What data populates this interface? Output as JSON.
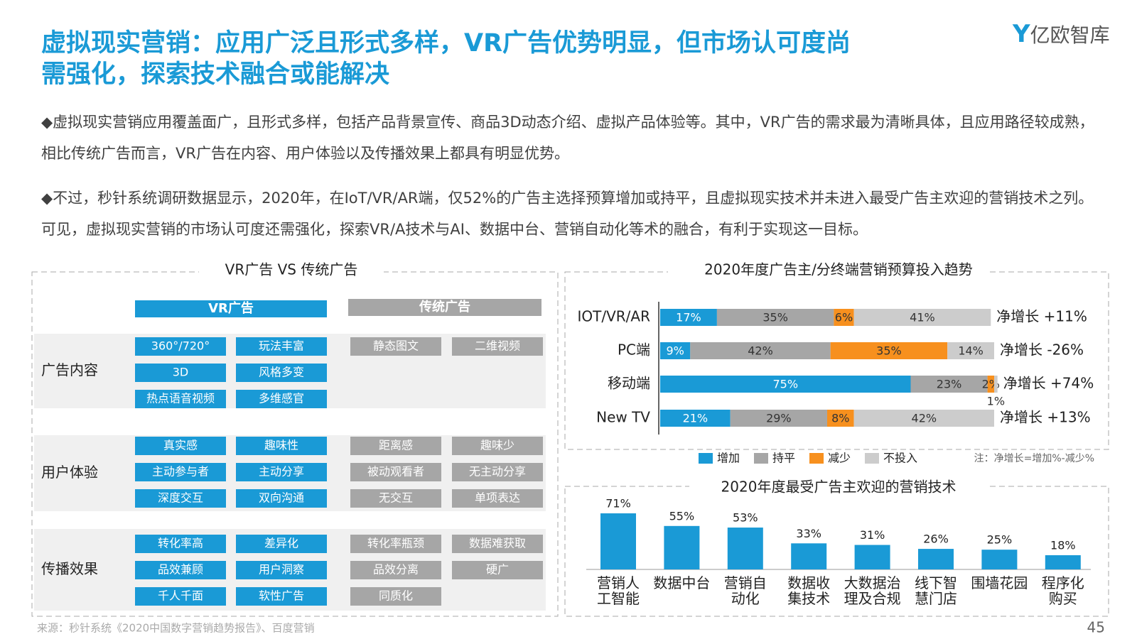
{
  "header": {
    "title_lines": [
      "虚拟现实营销：应用广泛且形式多样，VR广告优势明显，但市场认可度尚",
      "需强化，探索技术融合或能解决"
    ],
    "logo": "亿欧智库"
  },
  "paragraphs": [
    "◆虚拟现实营销应用覆盖面广，且形式多样，包括产品背景宣传、商品3D动态介绍、虚拟产品体验等。其中，VR广告的需求最为清晰具体，且应用路径较成熟，相比传统广告而言，VR广告在内容、用户体验以及传播效果上都具有明显优势。",
    "◆不过，秒针系统调研数据显示，2020年，在IoT/VR/AR端，仅52%的广告主选择预算增加或持平，且虚拟现实技术并未进入最受广告主欢迎的营销技术之列。可见，虚拟现实营销的市场认可度还需强化，探索VR/A技术与AI、数据中台、营销自动化等术的融合，有利于实现这一目标。"
  ],
  "comparison": {
    "title": "VR广告 VS 传统广告",
    "columns": [
      "VR广告",
      "传统广告"
    ],
    "rows": [
      {
        "label": "广告内容",
        "vr": [
          "360°/720°",
          "玩法丰富",
          "3D",
          "风格多变",
          "热点语音视频",
          "多维感官"
        ],
        "trad": [
          "静态图文",
          "二维视频"
        ]
      },
      {
        "label": "用户体验",
        "vr": [
          "真实感",
          "趣味性",
          "主动参与者",
          "主动分享",
          "深度交互",
          "双向沟通"
        ],
        "trad": [
          "距离感",
          "趣味少",
          "被动观看者",
          "无主动分享",
          "无交互",
          "单项表达"
        ]
      },
      {
        "label": "传播效果",
        "vr": [
          "转化率高",
          "差异化",
          "品效兼顾",
          "用户洞察",
          "千人千面",
          "软性广告"
        ],
        "trad": [
          "转化率瓶颈",
          "数据难获取",
          "品效分离",
          "硬广",
          "同质化"
        ]
      }
    ]
  },
  "chart_data": [
    {
      "type": "stacked_hbar",
      "title": "2020年度广告主/分终端营销预算投入趋势",
      "categories": [
        "IOT/VR/AR",
        "PC端",
        "移动端",
        "New TV"
      ],
      "xlim": [
        0,
        100
      ],
      "series": [
        {
          "name": "增加",
          "color": "#1a9ad6",
          "values": [
            17,
            9,
            75,
            21
          ],
          "value_labels": [
            "17%",
            "9%",
            "75%",
            "21%"
          ]
        },
        {
          "name": "持平",
          "color": "#a6a6a6",
          "values": [
            35,
            42,
            23,
            29
          ],
          "value_labels": [
            "35%",
            "42%",
            "23%",
            "29%"
          ]
        },
        {
          "name": "减少",
          "color": "#f7901e",
          "values": [
            6,
            35,
            2,
            8
          ],
          "value_labels": [
            "6%",
            "35%",
            "2%",
            "8%"
          ]
        },
        {
          "name": "不投入",
          "color": "#cccccc",
          "values": [
            41,
            14,
            1,
            42
          ],
          "value_labels": [
            "41%",
            "14%",
            "1%",
            "42%"
          ]
        }
      ],
      "annotations": [
        "净增长 +11%",
        "净增长 -26%",
        "净增长 +74%",
        "净增长 +13%"
      ],
      "note": "注：净增长=增加%-减少%"
    },
    {
      "type": "bar",
      "title": "2020年度最受广告主欢迎的营销技术",
      "categories": [
        "营销人\n工智能",
        "数据中台",
        "营销自\n动化",
        "数据收\n集技术",
        "大数据治\n理及合规",
        "线下智\n慧门店",
        "围墙花园",
        "程序化\n购买"
      ],
      "values": [
        71,
        55,
        53,
        33,
        31,
        26,
        25,
        18
      ],
      "value_labels": [
        "71%",
        "55%",
        "53%",
        "33%",
        "31%",
        "26%",
        "25%",
        "18%"
      ],
      "color": "#1a9ad6",
      "ylim": [
        0,
        80
      ]
    }
  ],
  "footer": {
    "source": "来源：秒针系统《2020中国数字营销趋势报告》、百度营销",
    "page": "45"
  }
}
